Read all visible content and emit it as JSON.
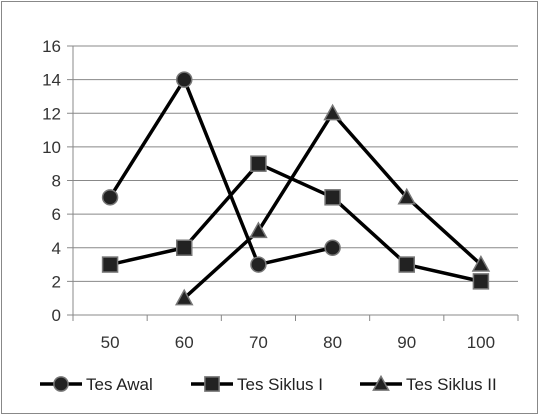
{
  "chart_data": {
    "type": "line",
    "x": [
      50,
      60,
      70,
      80,
      90,
      100
    ],
    "xticks": [
      "50",
      "60",
      "70",
      "80",
      "90",
      "100"
    ],
    "ylim": [
      0,
      16
    ],
    "yticks": [
      "0",
      "2",
      "4",
      "6",
      "8",
      "10",
      "12",
      "14",
      "16"
    ],
    "grid": "horizontal",
    "legend_position": "bottom",
    "series": [
      {
        "name": "Tes Awal",
        "marker": "circle",
        "x": [
          50,
          60,
          70,
          80
        ],
        "y": [
          7,
          14,
          3,
          4
        ]
      },
      {
        "name": "Tes Siklus I",
        "marker": "square",
        "x": [
          50,
          60,
          70,
          80,
          90,
          100
        ],
        "y": [
          3,
          4,
          9,
          7,
          3,
          2
        ]
      },
      {
        "name": "Tes Siklus II",
        "marker": "triangle",
        "x": [
          60,
          70,
          80,
          90,
          100
        ],
        "y": [
          1,
          5,
          12,
          7,
          3
        ]
      }
    ],
    "colors": {
      "line": "#000000",
      "marker_fill": "#222222",
      "marker_stroke": "#777777",
      "grid": "#888888"
    }
  }
}
